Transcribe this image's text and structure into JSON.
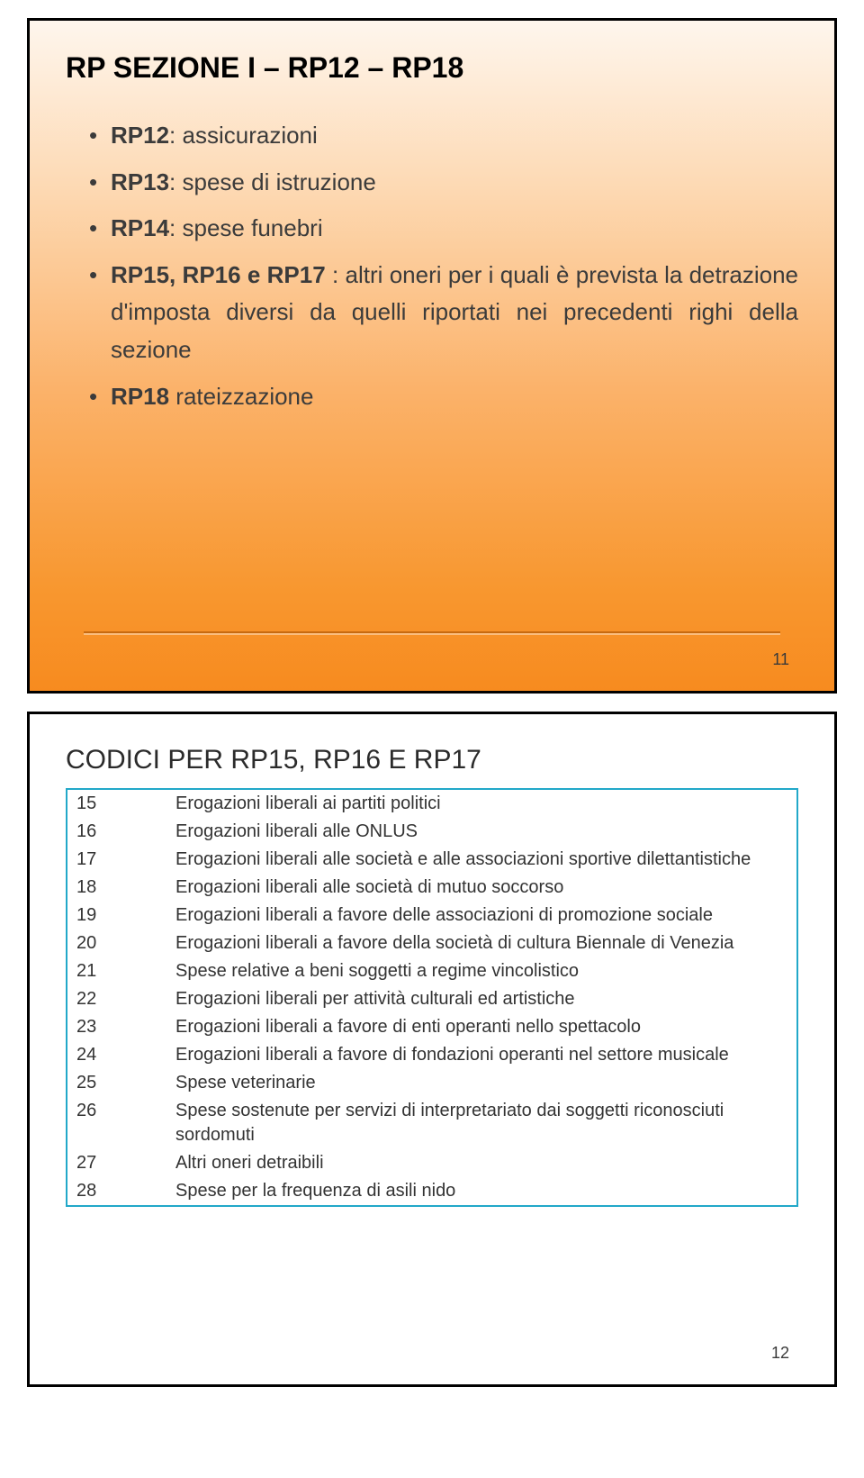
{
  "slide1": {
    "title": "RP SEZIONE I – RP12 – RP18",
    "items": [
      {
        "prefix": "RP12",
        "sep": ": ",
        "text": "assicurazioni"
      },
      {
        "prefix": "RP13",
        "sep": ": ",
        "text": "spese di istruzione"
      },
      {
        "prefix": "RP14",
        "sep": ": ",
        "text": "spese funebri"
      },
      {
        "prefix": "RP15, RP16 e RP17",
        "sep": " : ",
        "text": "altri oneri per i quali è prevista la detrazione d'imposta diversi da quelli riportati nei precedenti righi della sezione"
      },
      {
        "prefix": "RP18",
        "sep": " ",
        "text": "rateizzazione"
      }
    ],
    "page": "11",
    "background_gradient": [
      "#fef6ed",
      "#fdd9b3",
      "#fbb26a",
      "#f8972f",
      "#f78b1f"
    ],
    "divider_color": "#c86a0f",
    "title_fontsize": 32,
    "item_fontsize": 26
  },
  "slide2": {
    "title": "CODICI PER RP15, RP16 E RP17",
    "table_border_color": "#22a8c9",
    "rows": [
      {
        "code": "15",
        "desc": "Erogazioni liberali ai partiti politici"
      },
      {
        "code": "16",
        "desc": "Erogazioni liberali alle ONLUS"
      },
      {
        "code": "17",
        "desc": "Erogazioni liberali alle società e alle associazioni sportive dilettantistiche"
      },
      {
        "code": "18",
        "desc": "Erogazioni liberali alle società di mutuo soccorso"
      },
      {
        "code": "19",
        "desc": "Erogazioni liberali a favore delle associazioni di promozione sociale"
      },
      {
        "code": "20",
        "desc": "Erogazioni liberali a favore della società di cultura Biennale di Venezia"
      },
      {
        "code": "21",
        "desc": "Spese relative a beni soggetti a regime vincolistico"
      },
      {
        "code": "22",
        "desc": "Erogazioni liberali per attività culturali ed artistiche"
      },
      {
        "code": "23",
        "desc": "Erogazioni liberali a favore di enti operanti nello spettacolo"
      },
      {
        "code": "24",
        "desc": "Erogazioni liberali a favore di fondazioni operanti nel settore musicale"
      },
      {
        "code": "25",
        "desc": "Spese veterinarie"
      },
      {
        "code": "26",
        "desc": "Spese sostenute per servizi di interpretariato dai soggetti riconosciuti sordomuti"
      },
      {
        "code": "27",
        "desc": "Altri oneri detraibili"
      },
      {
        "code": "28",
        "desc": "Spese per la frequenza di asili nido"
      }
    ],
    "page": "12",
    "title_fontsize": 30,
    "row_fontsize": 20
  }
}
